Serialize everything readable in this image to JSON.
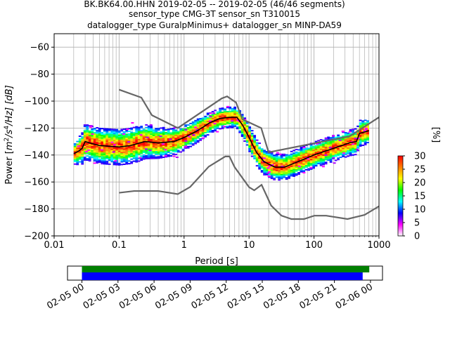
{
  "title_lines": [
    "BK.BK64.00.HHN   2019-02-05 -- 2019-02-05  (46/46 segments)",
    "sensor_type CMG-3T sensor_sn T310015",
    "datalogger_type GuralpMinimus+ datalogger_sn MINP-DA59"
  ],
  "chart_data": [
    {
      "type": "heatmap",
      "title": "BK.BK64.00.HHN   2019-02-05 -- 2019-02-05  (46/46 segments)",
      "xlabel": "Period [s]",
      "ylabel": "Power [m²/s⁴/Hz] [dB]",
      "ylabel_parts": {
        "pre": "Power [",
        "m": "m",
        "e1": "2",
        "mid": "/s",
        "e2": "4",
        "post": "/Hz] [dB]"
      },
      "x_scale": "log",
      "xlim": [
        0.01,
        1000
      ],
      "ylim": [
        -200,
        -50
      ],
      "x_ticks": [
        {
          "value": 0.01,
          "label": "0.01"
        },
        {
          "value": 0.1,
          "label": "0.1"
        },
        {
          "value": 1,
          "label": "1"
        },
        {
          "value": 10,
          "label": "10"
        },
        {
          "value": 100,
          "label": "100"
        },
        {
          "value": 1000,
          "label": "1000"
        }
      ],
      "y_ticks": [
        {
          "value": -60,
          "label": "−60"
        },
        {
          "value": -80,
          "label": "−80"
        },
        {
          "value": -100,
          "label": "−100"
        },
        {
          "value": -120,
          "label": "−120"
        },
        {
          "value": -140,
          "label": "−140"
        },
        {
          "value": -160,
          "label": "−160"
        },
        {
          "value": -180,
          "label": "−180"
        },
        {
          "value": -200,
          "label": "−200"
        }
      ],
      "grid": true,
      "colorbar": {
        "label": "[%]",
        "range": [
          0,
          30
        ],
        "ticks": [
          {
            "value": 0,
            "label": "0"
          },
          {
            "value": 5,
            "label": "5"
          },
          {
            "value": 10,
            "label": "10"
          },
          {
            "value": 15,
            "label": "15"
          },
          {
            "value": 20,
            "label": "20"
          },
          {
            "value": 25,
            "label": "25"
          },
          {
            "value": 30,
            "label": "30"
          }
        ],
        "colormap": [
          "#ffffff",
          "#ff00ff",
          "#0000ff",
          "#00ffff",
          "#00ff00",
          "#ffff00",
          "#ff7f00",
          "#ff0000"
        ]
      },
      "noise_model_high": [
        [
          0.1,
          -91.5
        ],
        [
          0.22,
          -97.4
        ],
        [
          0.32,
          -110.5
        ],
        [
          0.8,
          -120
        ],
        [
          3.8,
          -98
        ],
        [
          4.6,
          -96.5
        ],
        [
          6.3,
          -101
        ],
        [
          7.9,
          -113.5
        ],
        [
          15.4,
          -120
        ],
        [
          20,
          -138
        ],
        [
          354.8,
          -126
        ],
        [
          1000,
          -112
        ]
      ],
      "noise_model_low": [
        [
          0.1,
          -168
        ],
        [
          0.17,
          -166.7
        ],
        [
          0.4,
          -166.7
        ],
        [
          0.8,
          -169
        ],
        [
          1.24,
          -163.7
        ],
        [
          2.4,
          -148.6
        ],
        [
          4.3,
          -141.1
        ],
        [
          5,
          -141.1
        ],
        [
          6,
          -149
        ],
        [
          10,
          -163.8
        ],
        [
          12,
          -166.2
        ],
        [
          15.6,
          -162.1
        ],
        [
          21.9,
          -177.5
        ],
        [
          31.6,
          -185
        ],
        [
          45,
          -187.5
        ],
        [
          70,
          -187.5
        ],
        [
          101,
          -185
        ],
        [
          154,
          -185
        ],
        [
          328,
          -187.5
        ],
        [
          600,
          -184.4
        ],
        [
          1000,
          -178
        ]
      ],
      "mode_curve": [
        [
          0.02,
          -139
        ],
        [
          0.024,
          -137
        ],
        [
          0.027,
          -135
        ],
        [
          0.03,
          -130
        ],
        [
          0.035,
          -131
        ],
        [
          0.05,
          -133
        ],
        [
          0.1,
          -134
        ],
        [
          0.15,
          -133
        ],
        [
          0.25,
          -130
        ],
        [
          0.4,
          -131
        ],
        [
          0.7,
          -130
        ],
        [
          1,
          -127
        ],
        [
          1.6,
          -122
        ],
        [
          2.5,
          -116
        ],
        [
          3.5,
          -113
        ],
        [
          5,
          -112
        ],
        [
          6.5,
          -112
        ],
        [
          8,
          -118
        ],
        [
          10,
          -127
        ],
        [
          13,
          -138
        ],
        [
          17,
          -145
        ],
        [
          25,
          -149
        ],
        [
          35,
          -149
        ],
        [
          50,
          -146
        ],
        [
          100,
          -140
        ],
        [
          200,
          -135
        ],
        [
          350,
          -131
        ],
        [
          450,
          -130
        ],
        [
          500,
          -124
        ],
        [
          700,
          -122
        ]
      ],
      "psd_band": [
        {
          "period": 0.02,
          "spread": 4
        },
        {
          "period": 0.03,
          "spread": 7
        },
        {
          "period": 0.05,
          "spread": 7
        },
        {
          "period": 0.1,
          "spread": 7
        },
        {
          "period": 0.2,
          "spread": 7
        },
        {
          "period": 0.4,
          "spread": 6
        },
        {
          "period": 1,
          "spread": 5
        },
        {
          "period": 3,
          "spread": 4
        },
        {
          "period": 6,
          "spread": 4
        },
        {
          "period": 10,
          "spread": 5
        },
        {
          "period": 20,
          "spread": 5
        },
        {
          "period": 50,
          "spread": 5
        },
        {
          "period": 200,
          "spread": 5
        },
        {
          "period": 700,
          "spread": 5
        }
      ]
    },
    {
      "type": "timeline",
      "x_ticks": [
        {
          "hour": 0,
          "label": "02-05 00"
        },
        {
          "hour": 3,
          "label": "02-05 03"
        },
        {
          "hour": 6,
          "label": "02-05 06"
        },
        {
          "hour": 9,
          "label": "02-05 09"
        },
        {
          "hour": 12,
          "label": "02-05 12"
        },
        {
          "hour": 15,
          "label": "02-05 15"
        },
        {
          "hour": 18,
          "label": "02-05 18"
        },
        {
          "hour": 21,
          "label": "02-05 21"
        },
        {
          "hour": 24,
          "label": "02-06 00"
        }
      ],
      "xlim_hours": [
        -1.2,
        25.0
      ],
      "data_available": {
        "start_hour": 0,
        "end_hour": 23.9,
        "color": "#008000"
      },
      "psd_segments": {
        "start_hour": 0,
        "end_hour": 23.35,
        "color": "#0000ff"
      }
    }
  ]
}
